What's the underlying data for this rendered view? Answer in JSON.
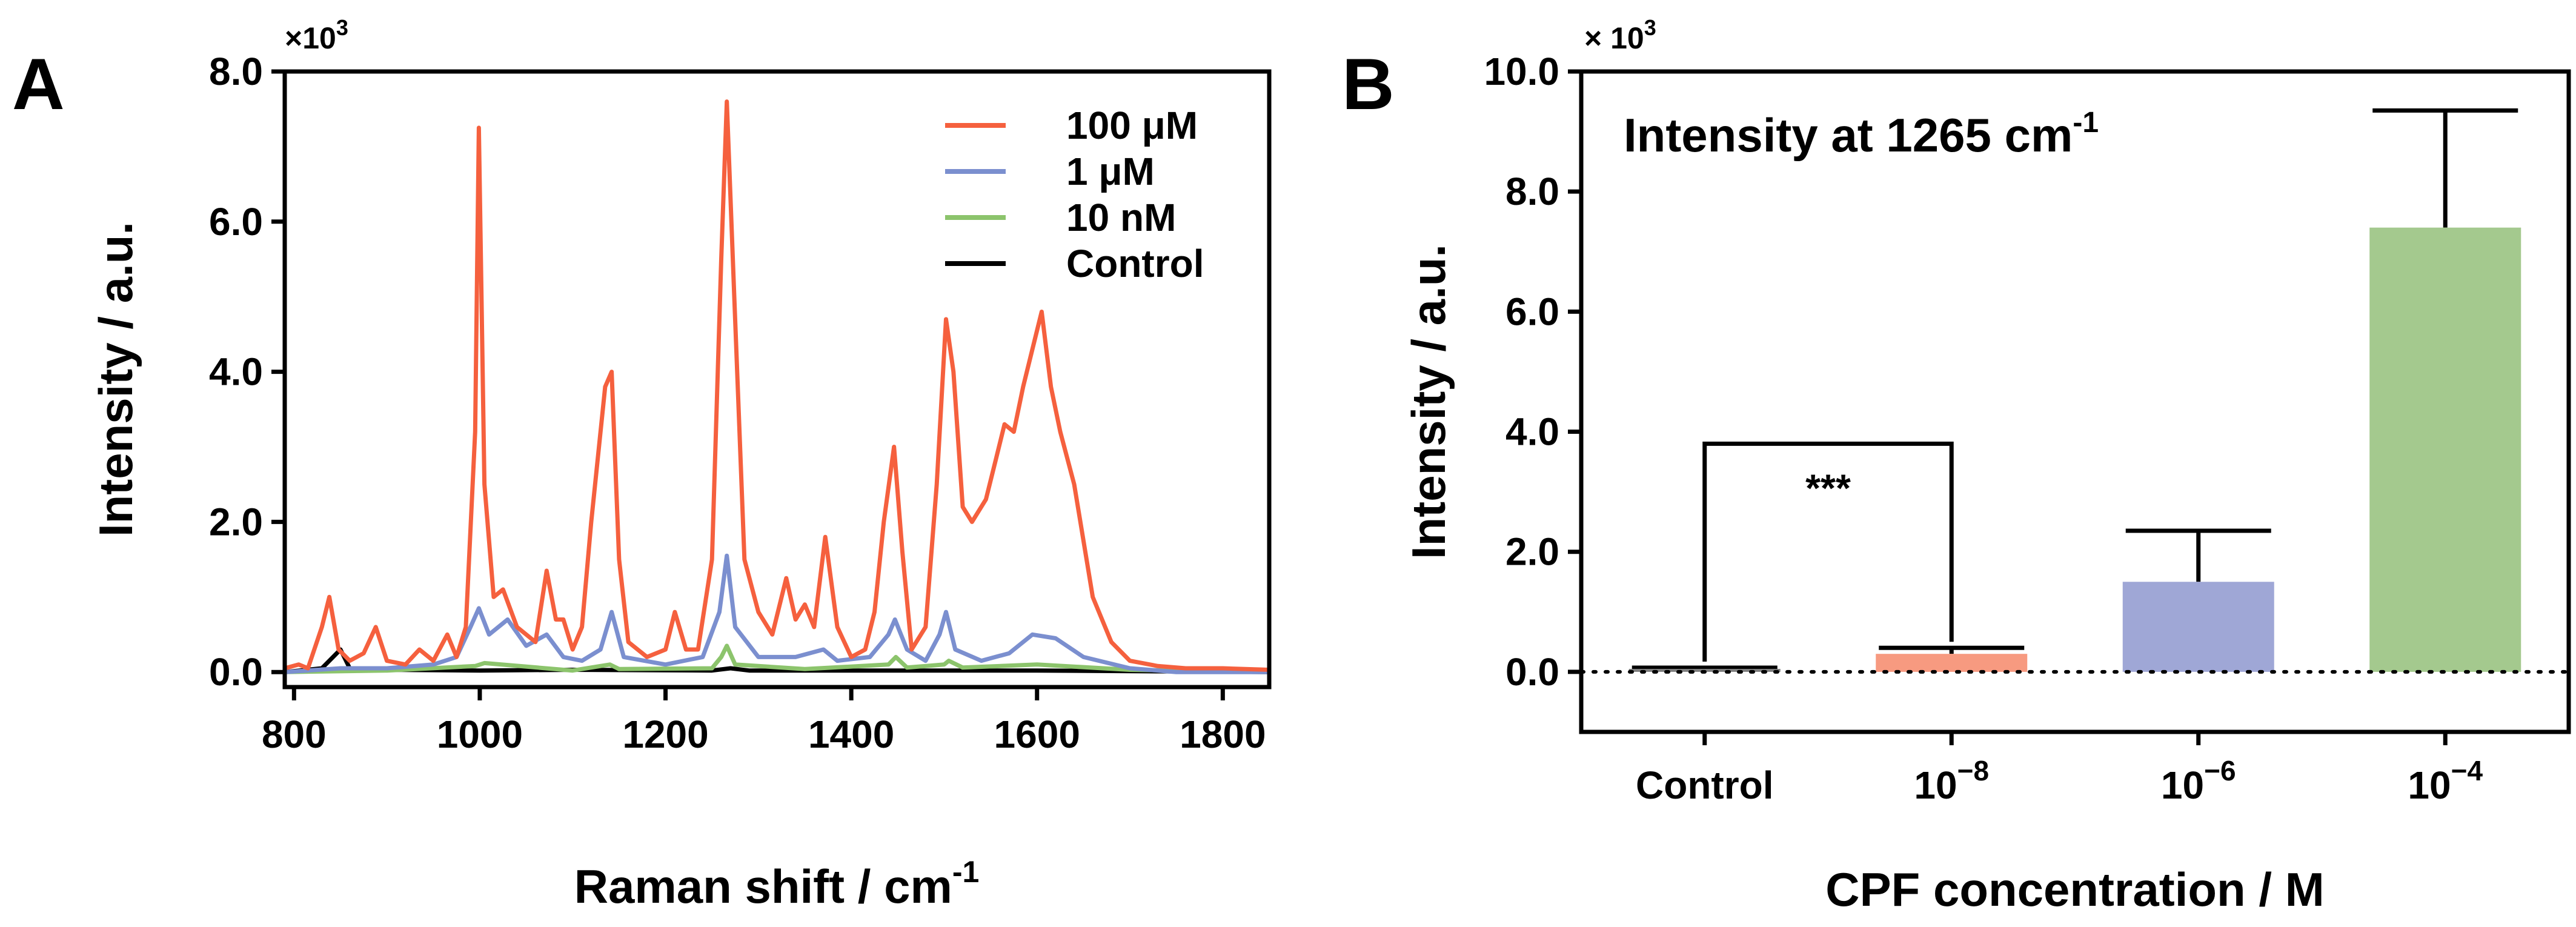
{
  "chart_data": [
    {
      "type": "line",
      "panel_label": "A",
      "multiplier": "×10",
      "multiplier_exp": "3",
      "xlabel": "Raman shift / cm",
      "xlabel_sup": "-1",
      "ylabel": "Intensity / a.u.",
      "xlim": [
        790,
        1850
      ],
      "ylim": [
        -0.2,
        8.0
      ],
      "xticks": [
        800,
        1000,
        1200,
        1400,
        1600,
        1800
      ],
      "yticks": [
        0.0,
        2.0,
        4.0,
        6.0,
        8.0
      ],
      "ytick_labels": [
        "0.0",
        "2.0",
        "4.0",
        "6.0",
        "8.0"
      ],
      "legend_position": "top-right",
      "series": [
        {
          "name": "100 μM",
          "color": "#f5603e",
          "x": [
            790,
            805,
            815,
            830,
            838,
            848,
            860,
            875,
            888,
            900,
            920,
            935,
            950,
            965,
            975,
            985,
            995,
            999,
            1005,
            1015,
            1025,
            1040,
            1060,
            1072,
            1082,
            1090,
            1100,
            1110,
            1120,
            1135,
            1142,
            1150,
            1160,
            1180,
            1200,
            1210,
            1222,
            1235,
            1250,
            1260,
            1266,
            1274,
            1285,
            1300,
            1315,
            1330,
            1340,
            1350,
            1360,
            1372,
            1385,
            1400,
            1415,
            1425,
            1435,
            1446,
            1455,
            1465,
            1480,
            1492,
            1502,
            1510,
            1520,
            1530,
            1545,
            1555,
            1565,
            1575,
            1585,
            1595,
            1605,
            1615,
            1625,
            1640,
            1660,
            1680,
            1700,
            1730,
            1760,
            1800,
            1850
          ],
          "y": [
            0.05,
            0.1,
            0.05,
            0.6,
            1.0,
            0.3,
            0.15,
            0.25,
            0.6,
            0.15,
            0.1,
            0.3,
            0.15,
            0.5,
            0.2,
            0.6,
            3.2,
            7.25,
            2.5,
            1.0,
            1.1,
            0.6,
            0.4,
            1.35,
            0.7,
            0.7,
            0.3,
            0.6,
            2.0,
            3.8,
            4.0,
            1.5,
            0.4,
            0.2,
            0.3,
            0.8,
            0.3,
            0.3,
            1.5,
            5.5,
            7.6,
            5.0,
            1.5,
            0.8,
            0.5,
            1.25,
            0.7,
            0.9,
            0.6,
            1.8,
            0.6,
            0.2,
            0.3,
            0.8,
            2.0,
            3.0,
            1.6,
            0.3,
            0.6,
            2.5,
            4.7,
            4.0,
            2.2,
            2.0,
            2.3,
            2.8,
            3.3,
            3.2,
            3.8,
            4.3,
            4.8,
            3.8,
            3.2,
            2.5,
            1.0,
            0.4,
            0.15,
            0.08,
            0.05,
            0.05,
            0.03
          ]
        },
        {
          "name": "1 μM",
          "color": "#7b8fcf",
          "x": [
            790,
            850,
            900,
            950,
            975,
            990,
            999,
            1010,
            1030,
            1050,
            1072,
            1090,
            1110,
            1130,
            1142,
            1155,
            1200,
            1240,
            1258,
            1266,
            1275,
            1300,
            1340,
            1370,
            1385,
            1420,
            1440,
            1447,
            1460,
            1480,
            1495,
            1502,
            1512,
            1540,
            1570,
            1595,
            1620,
            1650,
            1700,
            1750,
            1850
          ],
          "y": [
            0.0,
            0.05,
            0.05,
            0.1,
            0.2,
            0.6,
            0.85,
            0.5,
            0.7,
            0.35,
            0.5,
            0.2,
            0.15,
            0.3,
            0.8,
            0.2,
            0.1,
            0.2,
            0.8,
            1.55,
            0.6,
            0.2,
            0.2,
            0.3,
            0.15,
            0.2,
            0.5,
            0.7,
            0.3,
            0.15,
            0.5,
            0.8,
            0.3,
            0.15,
            0.25,
            0.5,
            0.45,
            0.2,
            0.05,
            0.0,
            0.0
          ]
        },
        {
          "name": "10 nM",
          "color": "#8cc46c",
          "x": [
            790,
            900,
            995,
            1005,
            1100,
            1140,
            1150,
            1250,
            1260,
            1266,
            1275,
            1350,
            1440,
            1448,
            1460,
            1500,
            1505,
            1520,
            1600,
            1700,
            1850
          ],
          "y": [
            0.0,
            0.02,
            0.08,
            0.12,
            0.02,
            0.1,
            0.04,
            0.05,
            0.2,
            0.35,
            0.1,
            0.04,
            0.1,
            0.2,
            0.06,
            0.1,
            0.15,
            0.06,
            0.1,
            0.03,
            0.0
          ]
        },
        {
          "name": "Control",
          "color": "#000000",
          "x": [
            790,
            830,
            850,
            860,
            900,
            1000,
            1100,
            1250,
            1270,
            1290,
            1400,
            1600,
            1850
          ],
          "y": [
            0.0,
            0.05,
            0.3,
            0.05,
            0.03,
            0.02,
            0.03,
            0.02,
            0.05,
            0.02,
            0.02,
            0.02,
            0.0
          ]
        }
      ]
    },
    {
      "type": "bar",
      "panel_label": "B",
      "multiplier": "× 10",
      "multiplier_exp": "3",
      "annotation": "Intensity at 1265 cm",
      "annotation_sup": "-1",
      "xlabel": "CPF concentration / M",
      "ylabel": "Intensity / a.u.",
      "ylim": [
        -1.0,
        10.0
      ],
      "yticks": [
        0.0,
        2.0,
        4.0,
        6.0,
        8.0,
        10.0
      ],
      "ytick_labels": [
        "0.0",
        "2.0",
        "4.0",
        "6.0",
        "8.0",
        "10.0"
      ],
      "categories": [
        {
          "label": "Control",
          "base": "",
          "exp": ""
        },
        {
          "label": "",
          "base": "10",
          "exp": "−8"
        },
        {
          "label": "",
          "base": "10",
          "exp": "−6"
        },
        {
          "label": "",
          "base": "10",
          "exp": "−4"
        }
      ],
      "values": [
        0.05,
        0.3,
        1.5,
        7.4
      ],
      "errors": [
        0.02,
        0.1,
        0.85,
        1.95
      ],
      "colors": [
        "#808080",
        "#f79a80",
        "#9fa7d6",
        "#a4c98e"
      ],
      "significance": {
        "from": 0,
        "to": 1,
        "label": "***",
        "y": 3.8
      },
      "zero_line": "dotted"
    }
  ]
}
